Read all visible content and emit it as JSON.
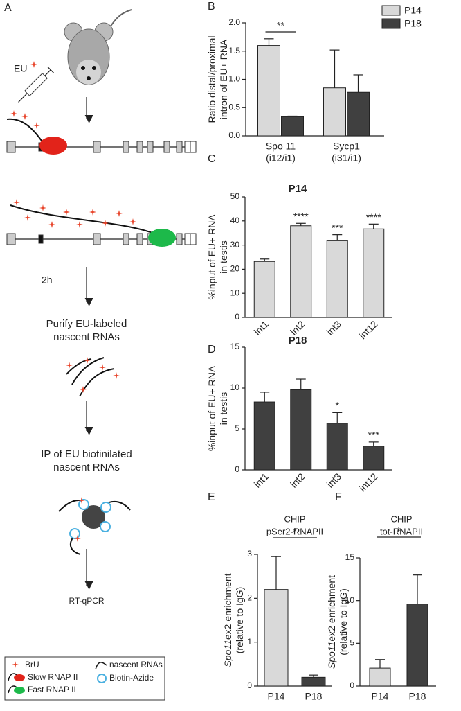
{
  "diagram": {
    "panel": "A",
    "eu": "EU",
    "time": "2h",
    "steps": [
      [
        "Purify EU-labeled",
        "nascent RNAs"
      ],
      [
        "IP of EU biotinilated",
        "nascent RNAs"
      ],
      [
        "RT-qPCR"
      ]
    ],
    "legend": [
      "BrU",
      "Slow RNAP II",
      "Fast RNAP II",
      "nascent RNAs",
      "Biotin-Azide"
    ]
  },
  "chart_data": [
    {
      "type": "bar",
      "panel": "B",
      "ylabel": [
        "Ratio distal/proximal",
        "intron of EU+ RNA"
      ],
      "categories": [
        [
          "Spo 11",
          "(i12/i1)"
        ],
        [
          "Sycp1",
          "(i31/i1)"
        ]
      ],
      "series": [
        {
          "name": "P14",
          "color": "#d9d9d9",
          "values": [
            1.6,
            0.85
          ],
          "errors": [
            0.12,
            0.67
          ]
        },
        {
          "name": "P18",
          "color": "#404040",
          "values": [
            0.34,
            0.77
          ],
          "errors": [
            0.01,
            0.31
          ]
        }
      ],
      "ylim": [
        0,
        2
      ],
      "yticks": [
        {
          "value": 0,
          "label": "0.0"
        },
        0.5,
        {
          "value": 1,
          "label": "1.0"
        },
        1.5,
        {
          "value": 2,
          "label": "2.0"
        }
      ],
      "annotation": "**",
      "legend": "upper right"
    },
    {
      "type": "bar",
      "panel": "C",
      "title": [
        "P14"
      ],
      "ylabel": [
        "%input of EU+ RNA",
        "in testis"
      ],
      "categories": [
        "int1",
        "int2",
        "int3",
        "int12"
      ],
      "xtick_rotation": -45,
      "series": [
        {
          "color": "#d9d9d9",
          "values": [
            23.2,
            38,
            31.8,
            36.7
          ],
          "errors": [
            1,
            1,
            2.5,
            2
          ],
          "significance": [
            null,
            "****",
            "***",
            "****"
          ]
        }
      ],
      "ylim": [
        0,
        50
      ],
      "yticks": [
        0,
        10,
        20,
        30,
        40,
        50
      ]
    },
    {
      "type": "bar",
      "panel": "D",
      "title": [
        "P18"
      ],
      "ylabel": [
        "%input of EU+ RNA",
        "in testis"
      ],
      "categories": [
        "int1",
        "int2",
        "int3",
        "int12"
      ],
      "xtick_rotation": -45,
      "series": [
        {
          "color": "#404040",
          "values": [
            8.3,
            9.8,
            5.7,
            2.9
          ],
          "errors": [
            1.2,
            1.3,
            1.3,
            0.5
          ],
          "significance": [
            null,
            null,
            "*",
            "***"
          ]
        }
      ],
      "ylim": [
        0,
        15
      ],
      "yticks": [
        0,
        5,
        10,
        15
      ]
    },
    {
      "type": "bar",
      "panel": "E",
      "title": [
        "CHIP",
        "pSer2-RNAPII"
      ],
      "ylabel_gene": "Spo11",
      "ylabel": [
        "ex2 enrichment",
        "(relative to IgG)"
      ],
      "categories": [
        "P14",
        "P18"
      ],
      "series": [
        {
          "colors": [
            "#d9d9d9",
            "#404040"
          ],
          "values": [
            2.2,
            0.2
          ],
          "errors": [
            0.75,
            0.05
          ]
        }
      ],
      "ylim": [
        0,
        3
      ],
      "yticks": [
        0,
        1,
        2,
        3
      ],
      "annotation": "*"
    },
    {
      "type": "bar",
      "panel": "F",
      "title": [
        "CHIP",
        "tot-RNAPII"
      ],
      "ylabel_gene": "Spo11",
      "ylabel": [
        "ex2 enrichment",
        "(relative to IgG)"
      ],
      "categories": [
        "P14",
        "P18"
      ],
      "series": [
        {
          "colors": [
            "#d9d9d9",
            "#404040"
          ],
          "values": [
            2.1,
            9.6
          ],
          "errors": [
            1,
            3.4
          ]
        }
      ],
      "ylim": [
        0,
        15
      ],
      "yticks": [
        0,
        5,
        10,
        15
      ],
      "annotation": "*"
    }
  ]
}
